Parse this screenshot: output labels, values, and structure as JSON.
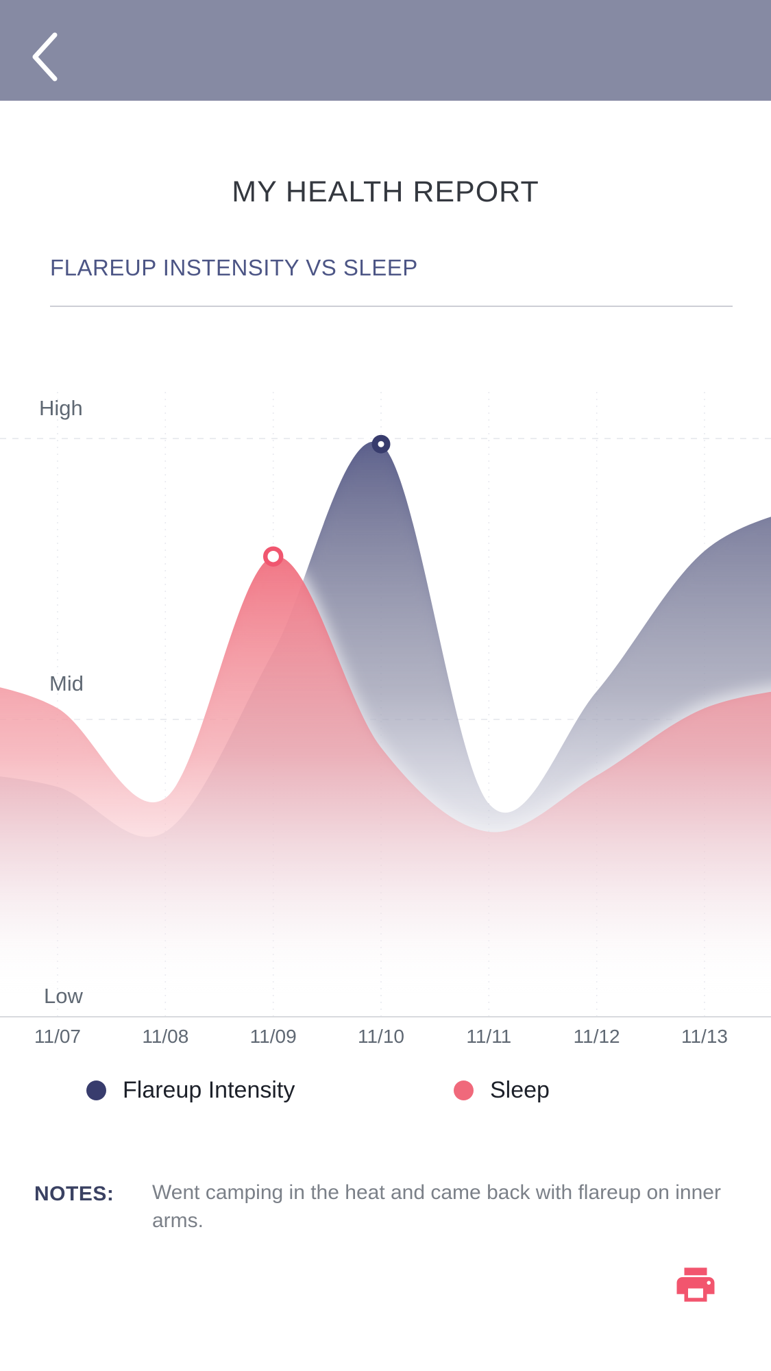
{
  "app": {
    "title": "MY HEALTH REPORT"
  },
  "header": {
    "back_icon": "chevron-left"
  },
  "section": {
    "title": "FLAREUP INSTENSITY VS SLEEP"
  },
  "chart_data": {
    "type": "area",
    "title": "Flareup Intensity vs Sleep",
    "x_labels": [
      "11/07",
      "11/08",
      "11/09",
      "11/10",
      "11/11",
      "11/12",
      "11/13"
    ],
    "y_tick_labels": [
      "High",
      "Mid",
      "Low"
    ],
    "y_scale_note": "qualitative scale, Low=0 Mid=0.5 High=1",
    "ylim": [
      0,
      1
    ],
    "grid": "dashed vertical line at each date; dashed horizontal lines at High and Mid; solid baseline at Low",
    "legend_position": "bottom",
    "series": [
      {
        "name": "Flareup Intensity",
        "color": "#4A4F83",
        "marker_color": "#383C6D",
        "marker_at": "11/10",
        "values": [
          0.38,
          0.3,
          0.62,
          0.99,
          0.35,
          0.55,
          0.8
        ]
      },
      {
        "name": "Sleep",
        "color": "#F0697B",
        "marker_color": "#F0566F",
        "marker_at": "11/09",
        "values": [
          0.52,
          0.36,
          0.79,
          0.45,
          0.3,
          0.4,
          0.52
        ]
      }
    ]
  },
  "legend": {
    "items": [
      {
        "label": "Flareup Intensity",
        "color": "#383C6D"
      },
      {
        "label": "Sleep",
        "color": "#F0697B"
      }
    ]
  },
  "notes": {
    "label": "NOTES:",
    "text": "Went camping in the heat and came back with flareup on inner arms."
  },
  "actions": {
    "print": {
      "icon": "printer",
      "color": "#F2556E"
    }
  },
  "theme": {
    "header_bg": "#868AA3",
    "section_title_color": "#4C5585",
    "axis_text_color": "#5F6873"
  }
}
